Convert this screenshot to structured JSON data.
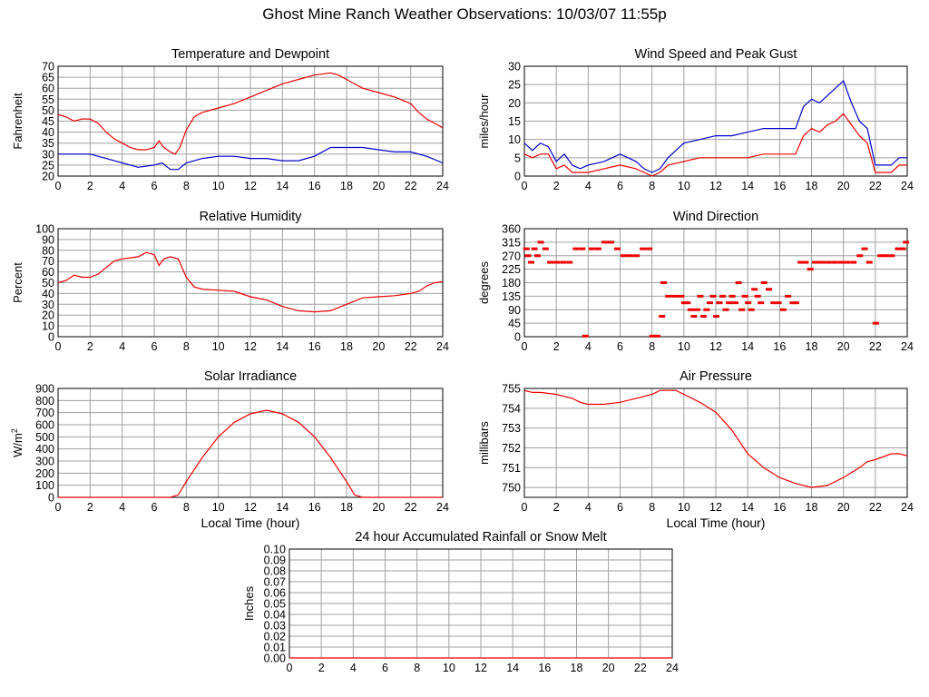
{
  "page_title": "Ghost Mine Ranch Weather Observations: 10/03/07 11:55p",
  "colors": {
    "series_red": "#ee0000",
    "series_blue": "#0000cc",
    "grid": "#a0a0a0",
    "frame": "#000000"
  },
  "chart_data": [
    {
      "id": "temp",
      "type": "line",
      "title": "Temperature and Dewpoint",
      "ylabel": "Fahrenheit",
      "xlabel": "",
      "xlim": [
        0,
        24
      ],
      "ylim": [
        20,
        70
      ],
      "xticks": [
        "0",
        "2",
        "4",
        "6",
        "8",
        "10",
        "12",
        "14",
        "16",
        "18",
        "20",
        "22",
        "24"
      ],
      "yticks": [
        "20",
        "25",
        "30",
        "35",
        "40",
        "45",
        "50",
        "55",
        "60",
        "65",
        "70"
      ],
      "grid": true,
      "series": [
        {
          "color": "#ee0000",
          "x": [
            0,
            0.5,
            1,
            1.5,
            2,
            2.5,
            3,
            3.5,
            4,
            4.5,
            5,
            5.5,
            6,
            6.3,
            6.6,
            7,
            7.3,
            7.6,
            8,
            8.5,
            9,
            10,
            11,
            12,
            13,
            14,
            15,
            16,
            17,
            17.5,
            18,
            18.5,
            19,
            20,
            21,
            22,
            22.5,
            23,
            23.5,
            24
          ],
          "y": [
            48,
            47,
            45,
            46,
            46,
            44,
            40,
            37,
            35,
            33,
            32,
            32,
            33,
            36,
            33,
            31,
            30,
            33,
            41,
            47,
            49,
            51,
            53,
            56,
            59,
            62,
            64,
            66,
            67,
            66,
            64,
            62,
            60,
            58,
            56,
            53,
            49,
            46,
            44,
            42
          ]
        },
        {
          "color": "#0000cc",
          "x": [
            0,
            1,
            2,
            3,
            4,
            5,
            6,
            6.5,
            7,
            7.5,
            8,
            9,
            10,
            11,
            12,
            13,
            14,
            15,
            16,
            17,
            18,
            19,
            20,
            21,
            22,
            23,
            24
          ],
          "y": [
            30,
            30,
            30,
            28,
            26,
            24,
            25,
            26,
            23,
            23,
            26,
            28,
            29,
            29,
            28,
            28,
            27,
            27,
            29,
            33,
            33,
            33,
            32,
            31,
            31,
            29,
            26
          ]
        }
      ]
    },
    {
      "id": "wind",
      "type": "line",
      "title": "Wind Speed and Peak Gust",
      "ylabel": "miles/hour",
      "xlabel": "",
      "xlim": [
        0,
        24
      ],
      "ylim": [
        0,
        30
      ],
      "xticks": [
        "0",
        "2",
        "4",
        "6",
        "8",
        "10",
        "12",
        "14",
        "16",
        "18",
        "20",
        "22",
        "24"
      ],
      "yticks": [
        "0",
        "5",
        "10",
        "15",
        "20",
        "25",
        "30"
      ],
      "grid": true,
      "series": [
        {
          "color": "#0000cc",
          "x": [
            0,
            0.5,
            1,
            1.5,
            2,
            2.5,
            3,
            3.5,
            4,
            5,
            6,
            7,
            7.5,
            8,
            8.5,
            9,
            10,
            11,
            12,
            13,
            14,
            15,
            16,
            17,
            17.5,
            18,
            18.5,
            19,
            19.5,
            20,
            20.5,
            21,
            21.5,
            22,
            22.5,
            23,
            23.5,
            24
          ],
          "y": [
            9,
            7,
            9,
            8,
            4,
            6,
            3,
            2,
            3,
            4,
            6,
            4,
            2,
            1,
            2,
            5,
            9,
            10,
            11,
            11,
            12,
            13,
            13,
            13,
            19,
            21,
            20,
            22,
            24,
            26,
            20,
            15,
            13,
            3,
            3,
            3,
            5,
            5
          ]
        },
        {
          "color": "#ee0000",
          "x": [
            0,
            0.5,
            1,
            1.5,
            2,
            2.5,
            3,
            3.5,
            4,
            5,
            6,
            7,
            7.5,
            8,
            8.5,
            9,
            10,
            11,
            12,
            13,
            14,
            15,
            16,
            17,
            17.5,
            18,
            18.5,
            19,
            19.5,
            20,
            20.5,
            21,
            21.5,
            22,
            22.5,
            23,
            23.5,
            24
          ],
          "y": [
            6,
            5,
            6,
            6,
            2,
            3,
            1,
            1,
            1,
            2,
            3,
            2,
            1,
            0,
            1,
            3,
            4,
            5,
            5,
            5,
            5,
            6,
            6,
            6,
            11,
            13,
            12,
            14,
            15,
            17,
            14,
            11,
            9,
            1,
            1,
            1,
            3,
            3
          ]
        }
      ]
    },
    {
      "id": "rh",
      "type": "line",
      "title": "Relative Humidity",
      "ylabel": "Percent",
      "xlabel": "",
      "xlim": [
        0,
        24
      ],
      "ylim": [
        0,
        100
      ],
      "xticks": [
        "0",
        "2",
        "4",
        "6",
        "8",
        "10",
        "12",
        "14",
        "16",
        "18",
        "20",
        "22",
        "24"
      ],
      "yticks": [
        "0",
        "10",
        "20",
        "30",
        "40",
        "50",
        "60",
        "70",
        "80",
        "90",
        "100"
      ],
      "grid": true,
      "series": [
        {
          "color": "#ee0000",
          "x": [
            0,
            0.5,
            1,
            1.5,
            2,
            2.5,
            3,
            3.5,
            4,
            4.5,
            5,
            5.5,
            6,
            6.3,
            6.6,
            7,
            7.5,
            8,
            8.5,
            9,
            10,
            11,
            12,
            13,
            14,
            15,
            16,
            17,
            18,
            19,
            20,
            21,
            22,
            22.5,
            23,
            23.5,
            24
          ],
          "y": [
            50,
            52,
            57,
            55,
            55,
            58,
            64,
            70,
            72,
            73,
            74,
            78,
            76,
            66,
            72,
            74,
            72,
            55,
            46,
            44,
            43,
            42,
            37,
            34,
            28,
            24,
            23,
            24,
            30,
            36,
            37,
            38,
            40,
            42,
            47,
            50,
            51
          ]
        }
      ]
    },
    {
      "id": "wdir",
      "type": "scatter",
      "title": "Wind Direction",
      "ylabel": "degrees",
      "xlabel": "",
      "xlim": [
        0,
        24
      ],
      "ylim": [
        0,
        360
      ],
      "xticks": [
        "0",
        "2",
        "4",
        "6",
        "8",
        "10",
        "12",
        "14",
        "16",
        "18",
        "20",
        "22",
        "24"
      ],
      "yticks": [
        "0",
        "45",
        "90",
        "135",
        "180",
        "225",
        "270",
        "315",
        "360"
      ],
      "grid": true,
      "series": [
        {
          "color": "#ee0000",
          "points": [
            [
              0.1,
              293
            ],
            [
              0.2,
              270
            ],
            [
              0.4,
              248
            ],
            [
              0.6,
              293
            ],
            [
              0.8,
              270
            ],
            [
              1,
              315
            ],
            [
              1.3,
              293
            ],
            [
              1.6,
              248
            ],
            [
              2,
              248
            ],
            [
              2.4,
              248
            ],
            [
              2.8,
              248
            ],
            [
              3.2,
              293
            ],
            [
              3.6,
              293
            ],
            [
              3.8,
              2
            ],
            [
              4.2,
              293
            ],
            [
              4.6,
              293
            ],
            [
              5,
              315
            ],
            [
              5.4,
              315
            ],
            [
              5.8,
              293
            ],
            [
              6.2,
              270
            ],
            [
              6.6,
              270
            ],
            [
              7,
              270
            ],
            [
              7.4,
              293
            ],
            [
              7.8,
              293
            ],
            [
              8,
              2
            ],
            [
              8.3,
              2
            ],
            [
              8.6,
              68
            ],
            [
              8.7,
              180
            ],
            [
              9,
              135
            ],
            [
              9.4,
              135
            ],
            [
              9.8,
              135
            ],
            [
              10,
              113
            ],
            [
              10.2,
              113
            ],
            [
              10.4,
              90
            ],
            [
              10.6,
              68
            ],
            [
              10.8,
              90
            ],
            [
              11,
              135
            ],
            [
              11.2,
              68
            ],
            [
              11.4,
              90
            ],
            [
              11.6,
              113
            ],
            [
              11.8,
              135
            ],
            [
              12,
              68
            ],
            [
              12.2,
              113
            ],
            [
              12.4,
              135
            ],
            [
              12.6,
              90
            ],
            [
              12.8,
              113
            ],
            [
              13,
              135
            ],
            [
              13.2,
              113
            ],
            [
              13.4,
              180
            ],
            [
              13.6,
              90
            ],
            [
              13.8,
              135
            ],
            [
              14,
              113
            ],
            [
              14.2,
              90
            ],
            [
              14.4,
              158
            ],
            [
              14.6,
              135
            ],
            [
              14.8,
              113
            ],
            [
              15,
              180
            ],
            [
              15.3,
              158
            ],
            [
              15.6,
              113
            ],
            [
              15.9,
              113
            ],
            [
              16.2,
              90
            ],
            [
              16.5,
              135
            ],
            [
              16.8,
              113
            ],
            [
              17,
              113
            ],
            [
              17.3,
              248
            ],
            [
              17.6,
              248
            ],
            [
              17.9,
              225
            ],
            [
              18.2,
              248
            ],
            [
              18.6,
              248
            ],
            [
              19,
              248
            ],
            [
              19.4,
              248
            ],
            [
              19.8,
              248
            ],
            [
              20.2,
              248
            ],
            [
              20.6,
              248
            ],
            [
              21,
              270
            ],
            [
              21.3,
              293
            ],
            [
              21.6,
              248
            ],
            [
              22,
              45
            ],
            [
              22.3,
              270
            ],
            [
              22.6,
              270
            ],
            [
              23,
              270
            ],
            [
              23.4,
              293
            ],
            [
              23.7,
              293
            ],
            [
              23.9,
              315
            ]
          ]
        }
      ]
    },
    {
      "id": "solar",
      "type": "line",
      "title": "Solar Irradiance",
      "ylabel": "W/m",
      "ylabel_sup": "2",
      "xlabel": "Local Time (hour)",
      "xlim": [
        0,
        24
      ],
      "ylim": [
        0,
        900
      ],
      "xticks": [
        "0",
        "2",
        "4",
        "6",
        "8",
        "10",
        "12",
        "14",
        "16",
        "18",
        "20",
        "22",
        "24"
      ],
      "yticks": [
        "0",
        "100",
        "200",
        "300",
        "400",
        "500",
        "600",
        "700",
        "800",
        "900"
      ],
      "grid": true,
      "series": [
        {
          "color": "#ee0000",
          "x": [
            0,
            7,
            7.5,
            8,
            9,
            10,
            11,
            12,
            13,
            14,
            15,
            16,
            17,
            18,
            18.5,
            19,
            24
          ],
          "y": [
            0,
            0,
            20,
            130,
            330,
            500,
            620,
            690,
            720,
            690,
            620,
            500,
            330,
            130,
            20,
            0,
            0
          ]
        }
      ]
    },
    {
      "id": "pressure",
      "type": "line",
      "title": "Air Pressure",
      "ylabel": "millibars",
      "xlabel": "Local Time (hour)",
      "xlim": [
        0,
        24
      ],
      "ylim": [
        749.5,
        755
      ],
      "xticks": [
        "0",
        "2",
        "4",
        "6",
        "8",
        "10",
        "12",
        "14",
        "16",
        "18",
        "20",
        "22",
        "24"
      ],
      "yticks": [
        "750",
        "751",
        "752",
        "753",
        "754",
        "755"
      ],
      "grid": true,
      "series": [
        {
          "color": "#ee0000",
          "x": [
            0,
            0.5,
            1,
            2,
            3,
            3.5,
            4,
            5,
            6,
            7,
            8,
            8.5,
            9,
            9.5,
            10,
            11,
            12,
            13,
            14,
            15,
            16,
            17,
            18,
            19,
            19.5,
            20,
            21,
            21.5,
            22,
            23,
            23.5,
            24
          ],
          "y": [
            754.9,
            754.8,
            754.8,
            754.7,
            754.5,
            754.3,
            754.2,
            754.2,
            754.3,
            754.5,
            754.7,
            754.9,
            754.9,
            754.9,
            754.7,
            754.3,
            753.8,
            752.9,
            751.7,
            751,
            750.5,
            750.2,
            750,
            750.1,
            750.3,
            750.5,
            751,
            751.3,
            751.4,
            751.7,
            751.7,
            751.6
          ]
        }
      ]
    },
    {
      "id": "rain",
      "type": "line",
      "title": "24 hour Accumulated Rainfall or Snow Melt",
      "ylabel": "Inches",
      "xlabel": "",
      "xlim": [
        0,
        24
      ],
      "ylim": [
        0,
        0.1
      ],
      "xticks": [
        "0",
        "2",
        "4",
        "6",
        "8",
        "10",
        "12",
        "14",
        "16",
        "18",
        "20",
        "22",
        "24"
      ],
      "yticks": [
        "0.00",
        "0.01",
        "0.02",
        "0.03",
        "0.04",
        "0.05",
        "0.06",
        "0.07",
        "0.08",
        "0.09",
        "0.10"
      ],
      "grid": true,
      "series": [
        {
          "color": "#ee0000",
          "x": [
            0,
            24
          ],
          "y": [
            0,
            0
          ]
        }
      ]
    }
  ]
}
